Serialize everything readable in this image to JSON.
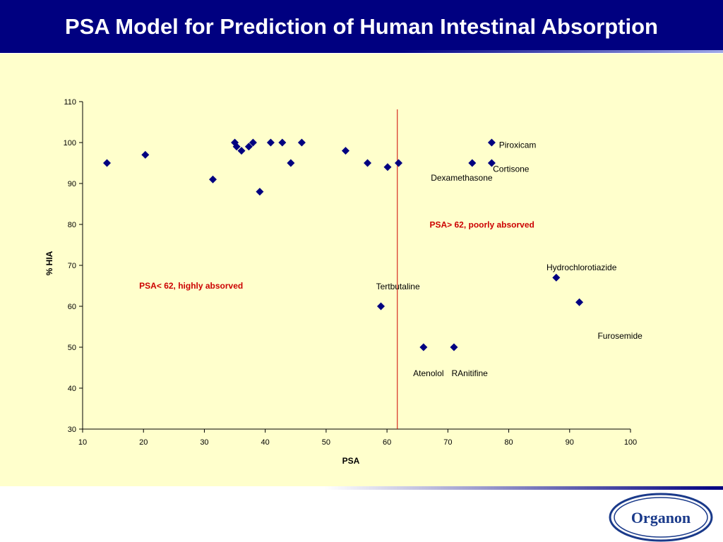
{
  "title": "PSA Model for Prediction of Human Intestinal Absorption",
  "colors": {
    "header_bg": "#000080",
    "panel_bg": "#ffffcc",
    "marker": "#000080",
    "threshold_line": "#cc0000",
    "annotation": "#cc0000"
  },
  "logo_text": "Organon",
  "chart_data": {
    "type": "scatter",
    "xlabel": "PSA",
    "ylabel": "% HIA",
    "xlim": [
      10,
      100
    ],
    "ylim": [
      30,
      110
    ],
    "xticks": [
      10,
      20,
      30,
      40,
      50,
      60,
      70,
      80,
      90,
      100
    ],
    "yticks": [
      30,
      40,
      50,
      60,
      70,
      80,
      90,
      100,
      110
    ],
    "grid": false,
    "marker": "diamond",
    "threshold_x": 61.7,
    "points": [
      {
        "x": 14.0,
        "y": 95
      },
      {
        "x": 20.3,
        "y": 97
      },
      {
        "x": 31.4,
        "y": 91
      },
      {
        "x": 35.0,
        "y": 100
      },
      {
        "x": 35.3,
        "y": 99
      },
      {
        "x": 36.1,
        "y": 98
      },
      {
        "x": 37.3,
        "y": 99
      },
      {
        "x": 38.0,
        "y": 100
      },
      {
        "x": 39.1,
        "y": 88
      },
      {
        "x": 40.9,
        "y": 100
      },
      {
        "x": 42.8,
        "y": 100
      },
      {
        "x": 44.2,
        "y": 95
      },
      {
        "x": 46.0,
        "y": 100
      },
      {
        "x": 53.2,
        "y": 98
      },
      {
        "x": 56.8,
        "y": 95
      },
      {
        "x": 60.1,
        "y": 94
      },
      {
        "x": 61.9,
        "y": 95
      },
      {
        "x": 74.0,
        "y": 95
      },
      {
        "x": 77.2,
        "y": 100
      },
      {
        "x": 77.2,
        "y": 95
      },
      {
        "x": 59.0,
        "y": 60
      },
      {
        "x": 66.0,
        "y": 50
      },
      {
        "x": 71.0,
        "y": 50
      },
      {
        "x": 87.8,
        "y": 67
      },
      {
        "x": 91.6,
        "y": 61
      }
    ],
    "point_labels": [
      {
        "text": "Piroxicam",
        "x": 78.4,
        "y": 99.4
      },
      {
        "text": "Cortisone",
        "x": 77.4,
        "y": 93.5
      },
      {
        "text": "Dexamethasone",
        "x": 67.2,
        "y": 91.4
      },
      {
        "text": "Hydrochlorotiazide",
        "x": 86.2,
        "y": 69.5
      },
      {
        "text": "Tertbutaline",
        "x": 58.2,
        "y": 64.8
      },
      {
        "text": "Furosemide",
        "x": 94.6,
        "y": 52.8
      },
      {
        "text": "Atenolol",
        "x": 64.3,
        "y": 43.6
      },
      {
        "text": "RAnitifine",
        "x": 70.6,
        "y": 43.6
      }
    ],
    "annotations": [
      {
        "text": "PSA< 62, highly absorved",
        "x": 19.3,
        "y": 65.0
      },
      {
        "text": "PSA> 62, poorly absorved",
        "x": 67.0,
        "y": 79.9
      }
    ]
  }
}
